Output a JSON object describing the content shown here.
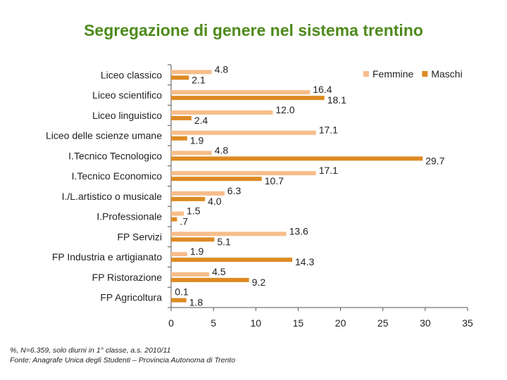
{
  "title": "Segregazione di genere nel sistema trentino",
  "notes": {
    "line1": "%, N=6.359, solo diurni in 1° classe, a.s. 2010/11",
    "line2": "Fonte: Anagrafe Unica degli Studenti – Provincia Autonoma di Trento"
  },
  "colors": {
    "femmine": "#f7bd8a",
    "maschi": "#dd8a22",
    "axis": "#555555",
    "text": "#222222"
  },
  "chart_data": {
    "type": "bar",
    "orientation": "horizontal",
    "title": "Segregazione di genere nel sistema trentino",
    "categories": [
      "Liceo classico",
      "Liceo scientifico",
      "Liceo linguistico",
      "Liceo delle scienze umane",
      "I.Tecnico Tecnologico",
      "I.Tecnico Economico",
      "I./L.artistico o musicale",
      "I.Professionale",
      "FP Servizi",
      "FP Industria e artigianato",
      "FP Ristorazione",
      "FP Agricoltura"
    ],
    "series": [
      {
        "name": "Femmine",
        "values": [
          4.8,
          16.4,
          12.0,
          17.1,
          4.8,
          17.1,
          6.3,
          1.5,
          13.6,
          1.9,
          4.5,
          0.1
        ],
        "labels": [
          "4.8",
          "16.4",
          "12.0",
          "17.1",
          "4.8",
          "17.1",
          "6.3",
          "1.5",
          "13.6",
          "1.9",
          "4.5",
          "0.1"
        ]
      },
      {
        "name": "Maschi",
        "values": [
          2.1,
          18.1,
          2.4,
          1.9,
          29.7,
          10.7,
          4.0,
          0.7,
          5.1,
          14.3,
          9.2,
          1.8
        ],
        "labels": [
          "2.1",
          "18.1",
          "2.4",
          "1.9",
          "29.7",
          "10.7",
          "4.0",
          ".7",
          "5.1",
          "14.3",
          "9.2",
          "1.8"
        ]
      }
    ],
    "xlim": [
      0,
      35
    ],
    "xticks": [
      0,
      5,
      10,
      15,
      20,
      25,
      30,
      35
    ],
    "xlabel": "",
    "ylabel": "",
    "grid": false,
    "legend": "top-right"
  }
}
